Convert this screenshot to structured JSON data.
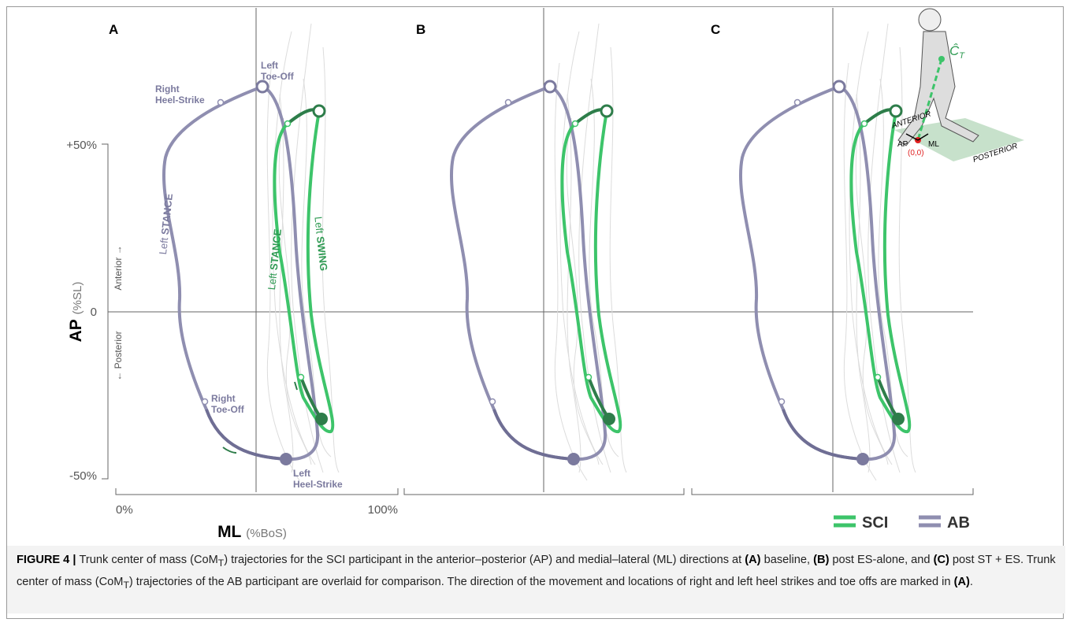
{
  "panels": [
    {
      "label": "A"
    },
    {
      "label": "B"
    },
    {
      "label": "C"
    }
  ],
  "y_axis": {
    "label": "AP",
    "unit": "(%SL)",
    "ticks": [
      "+50%",
      "0",
      "-50%"
    ],
    "up": "Anterior →",
    "down": "← Posterior"
  },
  "x_axis": {
    "label": "ML",
    "unit": "(%BoS)",
    "ticks": [
      "0%",
      "100%"
    ]
  },
  "annotations": {
    "left_toe_off": [
      "Left",
      "Toe-Off"
    ],
    "right_heel_strike": [
      "Right",
      "Heel-Strike"
    ],
    "right_toe_off": [
      "Right",
      "Toe-Off"
    ],
    "left_heel_strike": [
      "Left",
      "Heel-Strike"
    ],
    "ab_stance": [
      "Left",
      "STANCE"
    ],
    "sci_stance": [
      "Left",
      "STANCE"
    ],
    "sci_swing": [
      "Left",
      "SWING"
    ]
  },
  "inset": {
    "anterior": "ANTERIOR",
    "posterior": "POSTERIOR",
    "ap": "AP",
    "ml": "ML",
    "origin": "(0,0)",
    "com": "Ĉ",
    "com_sub": "T"
  },
  "legend": [
    {
      "name": "SCI",
      "color": "#3dc46a"
    },
    {
      "name": "AB",
      "color": "#8f8eb0"
    }
  ],
  "caption": {
    "segments": [
      {
        "text": "FIGURE 4 | ",
        "bold": true
      },
      {
        "text": "Trunk center of mass (CoM",
        "bold": false
      },
      {
        "text": "T",
        "sub": true
      },
      {
        "text": ") trajectories for the SCI participant in the anterior–posterior (AP) and medial–lateral (ML) directions at ",
        "bold": false
      },
      {
        "text": "(A)",
        "bold": true
      },
      {
        "text": " baseline, ",
        "bold": false
      },
      {
        "text": "(B)",
        "bold": true
      },
      {
        "text": " post ES-alone, and ",
        "bold": false
      },
      {
        "text": "(C)",
        "bold": true
      },
      {
        "text": " post ST + ES. Trunk center of mass (CoM",
        "bold": false
      },
      {
        "text": "T",
        "sub": true
      },
      {
        "text": ") trajectories of the AB participant are overlaid for comparison. The direction of the movement and locations of right and left heel strikes and toe offs are marked in ",
        "bold": false
      },
      {
        "text": "(A)",
        "bold": true
      },
      {
        "text": ".",
        "bold": false
      }
    ]
  }
}
